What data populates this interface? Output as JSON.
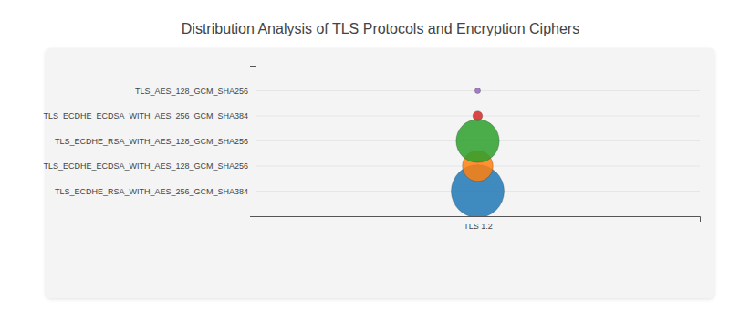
{
  "chart_data": {
    "type": "bubble",
    "title": "Distribution Analysis of TLS Protocols and Encryption Ciphers",
    "x": [
      "TLS 1.2",
      "TLS 1.2",
      "TLS 1.2",
      "TLS 1.2",
      "TLS 1.2"
    ],
    "y": [
      "TLS_ECDHE_RSA_WITH_AES_256_GCM_SHA384",
      "TLS_ECDHE_ECDSA_WITH_AES_128_GCM_SHA256",
      "TLS_ECDHE_RSA_WITH_AES_128_GCM_SHA256",
      "TLS_ECDHE_ECDSA_WITH_AES_256_GCM_SHA384",
      "TLS_AES_128_GCM_SHA256"
    ],
    "sizes": [
      45,
      15,
      30,
      1.5,
      0.5
    ],
    "colors": [
      "#1f77b4",
      "#ff7f0e",
      "#2ca02c",
      "#d62728",
      "#9467bd"
    ],
    "grid": true
  }
}
